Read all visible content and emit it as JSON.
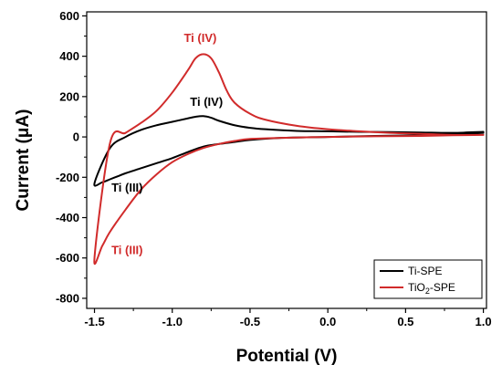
{
  "chart_data": {
    "type": "line",
    "xlabel": "Potential (V)",
    "ylabel": "Current (μA)",
    "xlim": [
      -1.55,
      1.02
    ],
    "ylim": [
      -850,
      620
    ],
    "x_ticks": [
      -1.5,
      -1.0,
      -0.5,
      0.0,
      0.5,
      1.0
    ],
    "x_tick_labels": [
      "-1.5",
      "-1.0",
      "-0.5",
      "0.0",
      "0.5",
      "1.0"
    ],
    "y_ticks": [
      -800,
      -600,
      -400,
      -200,
      0,
      200,
      400,
      600
    ],
    "y_tick_labels": [
      "-800",
      "-600",
      "-400",
      "-200",
      "0",
      "200",
      "400",
      "600"
    ],
    "grid": false,
    "legend_position": "bottom-right",
    "series": [
      {
        "name": "Ti-SPE",
        "color": "#000000",
        "x": [
          1.0,
          0.8,
          0.6,
          0.4,
          0.2,
          0.0,
          -0.2,
          -0.4,
          -0.5,
          -0.6,
          -0.7,
          -0.75,
          -0.8,
          -0.85,
          -0.9,
          -1.0,
          -1.1,
          -1.2,
          -1.3,
          -1.4,
          -1.5,
          -1.45,
          -1.4,
          -1.35,
          -1.3,
          -1.2,
          -1.1,
          -1.0,
          -0.9,
          -0.8,
          -0.7,
          -0.6,
          -0.5,
          -0.3,
          0.0,
          0.3,
          0.6,
          0.8,
          1.0
        ],
        "y": [
          25,
          20,
          22,
          24,
          25,
          28,
          30,
          38,
          45,
          58,
          80,
          95,
          103,
          100,
          92,
          75,
          58,
          35,
          0,
          -55,
          -230,
          -225,
          -210,
          -195,
          -180,
          -155,
          -130,
          -105,
          -75,
          -48,
          -35,
          -25,
          -15,
          -5,
          0,
          5,
          8,
          12,
          20
        ]
      },
      {
        "name": "TiO₂-SPE",
        "color": "#d12b2b",
        "x": [
          1.0,
          0.8,
          0.6,
          0.4,
          0.2,
          0.0,
          -0.2,
          -0.4,
          -0.5,
          -0.6,
          -0.65,
          -0.7,
          -0.75,
          -0.8,
          -0.85,
          -0.9,
          -1.0,
          -1.1,
          -1.2,
          -1.3,
          -1.4,
          -1.5,
          -1.45,
          -1.4,
          -1.3,
          -1.2,
          -1.1,
          -1.0,
          -0.9,
          -0.8,
          -0.7,
          -0.6,
          -0.5,
          -0.3,
          0.0,
          0.3,
          0.6,
          0.8,
          1.0
        ],
        "y": [
          10,
          10,
          15,
          20,
          28,
          38,
          55,
          85,
          115,
          170,
          230,
          320,
          390,
          410,
          390,
          330,
          220,
          130,
          70,
          20,
          -30,
          -600,
          -540,
          -470,
          -360,
          -260,
          -185,
          -125,
          -85,
          -55,
          -35,
          -20,
          -10,
          -5,
          0,
          3,
          5,
          8,
          10
        ]
      }
    ],
    "annotations": [
      {
        "text": "Ti (IV)",
        "color": "#d12b2b",
        "x": -0.82,
        "y": 470
      },
      {
        "text": "Ti (IV)",
        "color": "#000000",
        "x": -0.78,
        "y": 155
      },
      {
        "text": "Ti (III)",
        "color": "#000000",
        "x": -1.29,
        "y": -270
      },
      {
        "text": "Ti (III)",
        "color": "#d12b2b",
        "x": -1.29,
        "y": -580
      }
    ],
    "legend": [
      {
        "label": "Ti-SPE",
        "color": "#000000",
        "subscript": false
      },
      {
        "label_main": "TiO",
        "label_sub": "2",
        "label_tail": "-SPE",
        "color": "#d12b2b",
        "subscript": true
      }
    ]
  }
}
